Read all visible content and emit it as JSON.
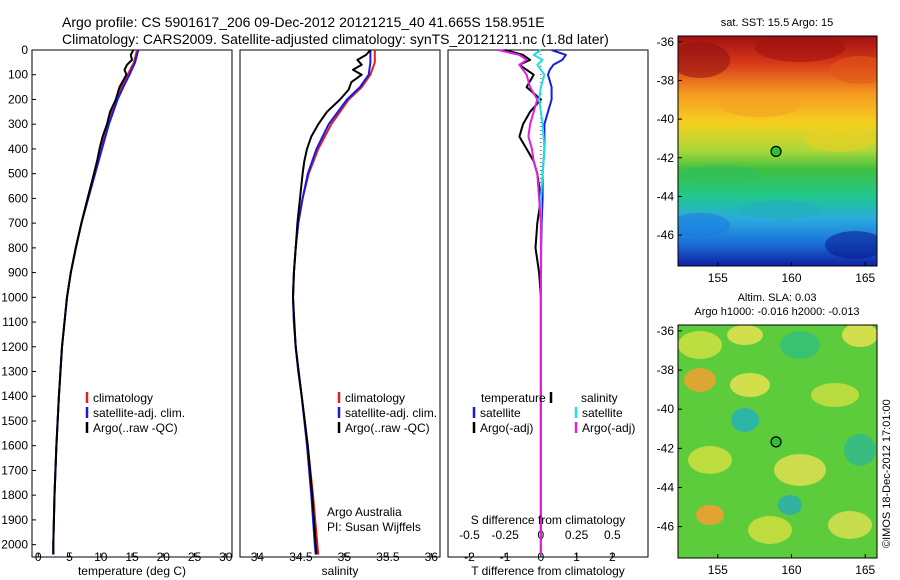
{
  "header": {
    "line1": "Argo profile: CS 5901617_206 09-Dec-2012 20121215_40 41.665S 158.951E",
    "line2": "Climatology: CARS2009. Satellite-adjusted climatology: synTS_20121211.nc (1.8d later)"
  },
  "credits": {
    "line1": "Argo Australia",
    "line2": "PI: Susan Wijffels"
  },
  "side_label": "©IMOS 18-Dec-2012 17:01:00",
  "colors": {
    "climatology": "#e02020",
    "satellite": "#1a1ae6",
    "argo": "#000000",
    "salinity_satellite": "#20e0e0",
    "salinity_argo": "#e020e0",
    "marker_fill": "#2fbf2f"
  },
  "chart_data": [
    {
      "type": "line",
      "xlabel": "temperature (deg C)",
      "ylabel": "",
      "xlim": [
        -1,
        31
      ],
      "ylim": [
        2050,
        0
      ],
      "xticks": [
        0,
        5,
        10,
        15,
        20,
        25,
        30
      ],
      "yticks": [
        0,
        100,
        200,
        300,
        400,
        500,
        600,
        700,
        800,
        900,
        1000,
        1100,
        1200,
        1300,
        1400,
        1500,
        1600,
        1700,
        1800,
        1900,
        2000
      ],
      "legend": {
        "position": "center-right",
        "entries": [
          "climatology",
          "satellite-adj. clim.",
          "Argo(..raw -QC)"
        ]
      },
      "series": [
        {
          "name": "climatology",
          "color": "climatology",
          "depth": [
            0,
            20,
            50,
            100,
            150,
            200,
            300,
            400,
            500,
            600,
            700,
            800,
            900,
            1000,
            1200,
            1400,
            1600,
            1800,
            2000,
            2040
          ],
          "values": [
            15.8,
            15.6,
            15.3,
            14.3,
            13.3,
            12.4,
            11.2,
            10.0,
            9.0,
            7.9,
            6.9,
            6.0,
            5.2,
            4.6,
            3.8,
            3.3,
            2.9,
            2.6,
            2.4,
            2.4
          ]
        },
        {
          "name": "satellite-adj. clim.",
          "color": "satellite",
          "depth": [
            0,
            20,
            50,
            100,
            150,
            200,
            300,
            400,
            500,
            600,
            700,
            800,
            900,
            1000,
            1200,
            1400,
            1600,
            1800,
            2000,
            2040
          ],
          "values": [
            16.0,
            15.8,
            15.5,
            14.6,
            13.6,
            12.7,
            11.3,
            10.2,
            9.1,
            8.0,
            6.9,
            6.0,
            5.2,
            4.6,
            3.8,
            3.3,
            2.9,
            2.6,
            2.4,
            2.4
          ]
        },
        {
          "name": "Argo(..raw -QC)",
          "color": "argo",
          "depth": [
            0,
            20,
            40,
            60,
            80,
            100,
            150,
            200,
            250,
            300,
            350,
            400,
            450,
            500,
            600,
            700,
            800,
            900,
            1000,
            1200,
            1400,
            1600,
            1800,
            2000,
            2040
          ],
          "values": [
            15.2,
            14.8,
            15.0,
            14.2,
            13.8,
            14.1,
            13.0,
            12.4,
            11.5,
            11.0,
            10.3,
            9.8,
            9.4,
            8.9,
            7.9,
            6.9,
            6.0,
            5.2,
            4.6,
            3.8,
            3.3,
            2.9,
            2.6,
            2.4,
            2.4
          ]
        }
      ]
    },
    {
      "type": "line",
      "xlabel": "salinity",
      "ylabel": "",
      "xlim": [
        33.8,
        36.1
      ],
      "ylim": [
        2050,
        0
      ],
      "xticks": [
        34,
        34.5,
        35,
        35.5,
        36
      ],
      "legend": {
        "position": "center-right",
        "entries": [
          "climatology",
          "satellite-adj. clim.",
          "Argo(..raw -QC)"
        ]
      },
      "series": [
        {
          "name": "climatology",
          "color": "climatology",
          "depth": [
            0,
            50,
            100,
            150,
            200,
            300,
            400,
            500,
            600,
            700,
            800,
            900,
            1000,
            1100,
            1200,
            1300,
            1400,
            1600,
            1800,
            2000,
            2040
          ],
          "values": [
            35.35,
            35.35,
            35.3,
            35.2,
            35.05,
            34.85,
            34.7,
            34.59,
            34.52,
            34.47,
            34.44,
            34.42,
            34.41,
            34.42,
            34.44,
            34.47,
            34.51,
            34.58,
            34.64,
            34.69,
            34.7
          ]
        },
        {
          "name": "satellite-adj. clim.",
          "color": "satellite",
          "depth": [
            0,
            50,
            100,
            150,
            200,
            300,
            400,
            500,
            600,
            700,
            800,
            900,
            1000,
            1100,
            1200,
            1300,
            1400,
            1600,
            1800,
            2000,
            2040
          ],
          "values": [
            35.3,
            35.3,
            35.28,
            35.18,
            35.03,
            34.82,
            34.68,
            34.58,
            34.52,
            34.47,
            34.44,
            34.42,
            34.41,
            34.42,
            34.44,
            34.47,
            34.51,
            34.57,
            34.62,
            34.66,
            34.67
          ]
        },
        {
          "name": "Argo(..raw -QC)",
          "color": "argo",
          "depth": [
            0,
            20,
            40,
            60,
            80,
            100,
            130,
            160,
            200,
            250,
            300,
            350,
            400,
            450,
            500,
            600,
            700,
            800,
            900,
            1000,
            1200,
            1400,
            1600,
            1800,
            2000,
            2040
          ],
          "values": [
            35.3,
            35.25,
            35.15,
            35.2,
            35.1,
            35.2,
            35.08,
            35.05,
            34.95,
            34.8,
            34.7,
            34.62,
            34.57,
            34.54,
            34.52,
            34.49,
            34.46,
            34.44,
            34.42,
            34.41,
            34.44,
            34.51,
            34.58,
            34.63,
            34.67,
            34.68
          ]
        }
      ]
    },
    {
      "type": "line",
      "xlabel": "T difference from climatology",
      "top_label": "S difference from climatology",
      "xlim": [
        -2.6,
        3.0
      ],
      "ylim": [
        2050,
        0
      ],
      "xticks": [
        -2,
        -1,
        0,
        1,
        2
      ],
      "top_ticks": [
        {
          "label": "-0.5",
          "at": -2
        },
        {
          "label": "-0.25",
          "at": -1
        },
        {
          "label": "0",
          "at": 0
        },
        {
          "label": "0.25",
          "at": 1
        },
        {
          "label": "0.5",
          "at": 2
        }
      ],
      "legend": {
        "position": "center",
        "group1_title": "temperature",
        "group2_title": "salinity",
        "group1": [
          "satellite",
          "Argo(-adj)"
        ],
        "group2": [
          "satellite",
          "Argo(-adj)"
        ]
      },
      "series": [
        {
          "name": "temperature satellite",
          "color": "satellite",
          "depth": [
            0,
            20,
            40,
            60,
            80,
            100,
            150,
            200,
            300,
            400,
            500,
            600,
            700,
            800,
            1000,
            1500,
            2040
          ],
          "values": [
            0.3,
            0.7,
            0.6,
            0.35,
            0.25,
            0.2,
            0.3,
            0.3,
            0.1,
            0.1,
            0.05,
            0.05,
            0.02,
            0.01,
            0.0,
            0.0,
            0.0
          ]
        },
        {
          "name": "temperature Argo(-adj)",
          "color": "argo",
          "depth": [
            0,
            20,
            40,
            60,
            80,
            100,
            150,
            200,
            250,
            300,
            350,
            400,
            450,
            500,
            550,
            600,
            700,
            800,
            900,
            1000,
            1500,
            2040
          ],
          "values": [
            -1.0,
            -0.5,
            -0.3,
            -0.6,
            -0.4,
            -0.2,
            -0.4,
            0.0,
            -0.3,
            -0.5,
            -0.6,
            -0.4,
            -0.2,
            -0.1,
            -0.05,
            0.0,
            -0.1,
            -0.15,
            -0.05,
            0.0,
            0.0,
            0.0
          ]
        },
        {
          "name": "salinity satellite",
          "color": "salinity_satellite",
          "depth": [
            0,
            20,
            40,
            60,
            80,
            100,
            150,
            200,
            300,
            400,
            500,
            600,
            700,
            800,
            1000,
            1500,
            2040
          ],
          "values": [
            0.0,
            -0.2,
            0.05,
            -0.1,
            0.0,
            0.1,
            0.0,
            -0.05,
            0.05,
            0.1,
            0.05,
            0.0,
            0.0,
            0.0,
            0.0,
            0.0,
            0.0
          ]
        },
        {
          "name": "salinity Argo(-adj)",
          "color": "salinity_argo",
          "depth": [
            0,
            20,
            40,
            60,
            80,
            100,
            150,
            200,
            250,
            300,
            350,
            400,
            450,
            500,
            600,
            700,
            800,
            1000,
            1500,
            2040
          ],
          "values": [
            -1.2,
            -0.6,
            -0.4,
            -0.6,
            -0.5,
            -0.4,
            -0.3,
            -0.1,
            -0.2,
            -0.3,
            -0.35,
            -0.25,
            -0.2,
            -0.1,
            -0.05,
            0.0,
            0.0,
            0.0,
            0.0,
            0.0
          ]
        }
      ]
    },
    {
      "type": "heatmap",
      "title": "sat. SST: 15.5 Argo: 15",
      "xlim": [
        152.3,
        165.8
      ],
      "ylim": [
        -47.6,
        -35.7
      ],
      "xticks": [
        155,
        160,
        165
      ],
      "yticks": [
        -36,
        -38,
        -40,
        -42,
        -44,
        -46
      ],
      "marker": {
        "lon": 158.95,
        "lat": -41.67
      }
    },
    {
      "type": "heatmap",
      "title": "Altim. SLA: 0.03",
      "subtitle": "Argo h1000: -0.016 h2000: -0.013",
      "xlim": [
        152.3,
        165.8
      ],
      "ylim": [
        -47.6,
        -35.7
      ],
      "xticks": [
        155,
        160,
        165
      ],
      "yticks": [
        -36,
        -38,
        -40,
        -42,
        -44,
        -46
      ],
      "marker": {
        "lon": 158.95,
        "lat": -41.67
      }
    }
  ]
}
